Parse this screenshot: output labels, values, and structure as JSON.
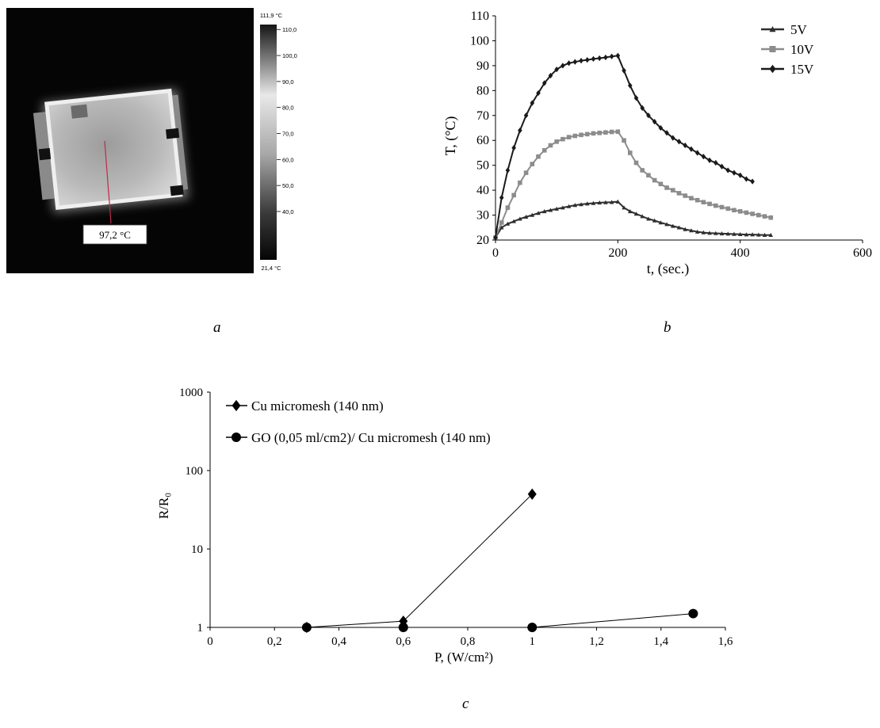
{
  "panel_labels": {
    "a": "a",
    "b": "b",
    "c": "c"
  },
  "thermal": {
    "max_label": "111,9 °C",
    "min_label": "21,4 °C",
    "scale_ticks": [
      "110,0",
      "100,0",
      "90,0",
      "80,0",
      "70,0",
      "60,0",
      "50,0",
      "40,0"
    ],
    "scale_values": [
      110,
      100,
      90,
      80,
      70,
      60,
      50,
      40
    ],
    "scale_max": 111.9,
    "scale_min": 21.4,
    "spot_label": "97,2 °C",
    "marker_color": "#c0284a"
  },
  "chart_data": [
    {
      "type": "line",
      "xlabel": "t, (sec.)",
      "ylabel": "T, (°C)",
      "xlim": [
        0,
        600
      ],
      "ylim": [
        20,
        110
      ],
      "xticks": [
        0,
        200,
        400,
        600
      ],
      "yticks": [
        20,
        30,
        40,
        50,
        60,
        70,
        80,
        90,
        100,
        110
      ],
      "xtick_labels": [
        "0",
        "200",
        "400",
        "600"
      ],
      "ytick_labels": [
        "20",
        "30",
        "40",
        "50",
        "60",
        "70",
        "80",
        "90",
        "100",
        "110"
      ],
      "legend_position": "top-right",
      "series": [
        {
          "name": "5V",
          "color": "#2e2e2e",
          "marker": "triangle",
          "x": [
            0,
            10,
            20,
            30,
            40,
            50,
            60,
            70,
            80,
            90,
            100,
            110,
            120,
            130,
            140,
            150,
            160,
            170,
            180,
            190,
            200,
            210,
            220,
            230,
            240,
            250,
            260,
            270,
            280,
            290,
            300,
            310,
            320,
            330,
            340,
            350,
            360,
            370,
            380,
            390,
            400,
            410,
            420,
            430,
            440,
            450
          ],
          "y": [
            21,
            25,
            26.5,
            27.5,
            28.5,
            29.3,
            30,
            30.8,
            31.5,
            32,
            32.5,
            33,
            33.5,
            34,
            34.3,
            34.6,
            34.8,
            35,
            35.1,
            35.2,
            35.4,
            33,
            31.5,
            30.5,
            29.5,
            28.5,
            27.8,
            27,
            26.3,
            25.6,
            25,
            24.3,
            23.8,
            23.3,
            23,
            22.8,
            22.7,
            22.6,
            22.5,
            22.4,
            22.3,
            22.2,
            22.2,
            22.1,
            22,
            22
          ]
        },
        {
          "name": "10V",
          "color": "#8c8c8c",
          "marker": "square",
          "x": [
            0,
            10,
            20,
            30,
            40,
            50,
            60,
            70,
            80,
            90,
            100,
            110,
            120,
            130,
            140,
            150,
            160,
            170,
            180,
            190,
            200,
            210,
            220,
            230,
            240,
            250,
            260,
            270,
            280,
            290,
            300,
            310,
            320,
            330,
            340,
            350,
            360,
            370,
            380,
            390,
            400,
            410,
            420,
            430,
            440,
            450
          ],
          "y": [
            21,
            27,
            33,
            38,
            43,
            47,
            50.5,
            53.5,
            56,
            58,
            59.5,
            60.5,
            61.3,
            61.8,
            62.2,
            62.5,
            62.8,
            63,
            63.2,
            63.4,
            63.5,
            60,
            55,
            51,
            48,
            46,
            44,
            42.5,
            41,
            40,
            38.8,
            37.8,
            36.8,
            36,
            35.2,
            34.5,
            33.8,
            33.2,
            32.6,
            32,
            31.5,
            31,
            30.5,
            30,
            29.5,
            29
          ]
        },
        {
          "name": "15V",
          "color": "#1a1a1a",
          "marker": "diamond",
          "x": [
            0,
            10,
            20,
            30,
            40,
            50,
            60,
            70,
            80,
            90,
            100,
            110,
            120,
            130,
            140,
            150,
            160,
            170,
            180,
            190,
            200,
            210,
            220,
            230,
            240,
            250,
            260,
            270,
            280,
            290,
            300,
            310,
            320,
            330,
            340,
            350,
            360,
            370,
            380,
            390,
            400,
            410,
            420
          ],
          "y": [
            21,
            37,
            48,
            57,
            64,
            70,
            75,
            79,
            83,
            86,
            88.5,
            90,
            91,
            91.5,
            92,
            92.3,
            92.7,
            93,
            93.3,
            93.7,
            94,
            88,
            82,
            77,
            73,
            70,
            67.5,
            65,
            63,
            61,
            59.5,
            58,
            56.5,
            55,
            53.5,
            52,
            51,
            49.5,
            48,
            47,
            46,
            44.5,
            43.5
          ]
        }
      ]
    },
    {
      "type": "line",
      "yscale": "log",
      "xlabel": "P, (W/cm²)",
      "ylabel": "R/R₀",
      "xlim": [
        0,
        1.6
      ],
      "ylim": [
        1,
        1000
      ],
      "xticks": [
        0,
        0.2,
        0.4,
        0.6,
        0.8,
        1,
        1.2,
        1.4,
        1.6
      ],
      "yticks": [
        1,
        10,
        100,
        1000
      ],
      "xtick_labels": [
        "0",
        "0,2",
        "0,4",
        "0,6",
        "0,8",
        "1",
        "1,2",
        "1,4",
        "1,6"
      ],
      "ytick_labels": [
        "1",
        "10",
        "100",
        "1000"
      ],
      "legend_position": "top-left",
      "series": [
        {
          "name": "Cu micromesh (140 nm)",
          "marker": "diamond",
          "x": [
            0.3,
            0.6,
            1
          ],
          "y": [
            1,
            1.2,
            50
          ]
        },
        {
          "name": "GO (0,05 ml/cm2)/ Cu micromesh (140 nm)",
          "marker": "circle",
          "x": [
            0.3,
            0.6,
            1,
            1.5
          ],
          "y": [
            1,
            1,
            1,
            1.5
          ]
        }
      ]
    }
  ]
}
